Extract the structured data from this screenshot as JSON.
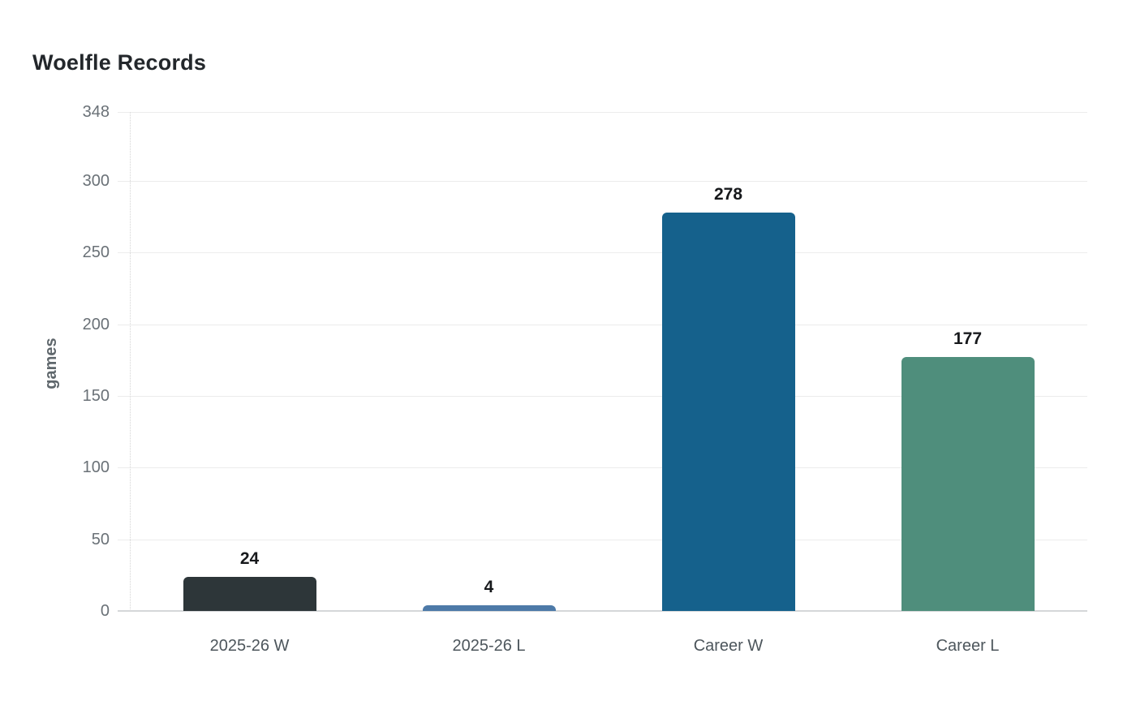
{
  "chart_data": {
    "type": "bar",
    "title": "Woelfle Records",
    "xlabel": "",
    "ylabel": "games",
    "categories": [
      "2025-26 W",
      "2025-26 L",
      "Career W",
      "Career L"
    ],
    "values": [
      24,
      4,
      278,
      177
    ],
    "value_labels": [
      "24",
      "4",
      "278",
      "177"
    ],
    "bar_colors": [
      "#2d3639",
      "#4d7aa8",
      "#15618c",
      "#4f8e7c"
    ],
    "yticks": [
      0,
      50,
      100,
      150,
      200,
      250,
      300,
      348
    ],
    "ylim": [
      0,
      348
    ],
    "grid": true,
    "legend_position": "none"
  },
  "colors": {
    "background": "#ffffff",
    "title_text": "#23272b",
    "tick_label": "#6a7177",
    "axis_label": "#5f676c",
    "category_label": "#4d565c",
    "value_label": "#17191c",
    "gridline": "#ececec",
    "zero_line": "#d5d7d9",
    "axis_dotted_line": "#d4d4d4"
  }
}
